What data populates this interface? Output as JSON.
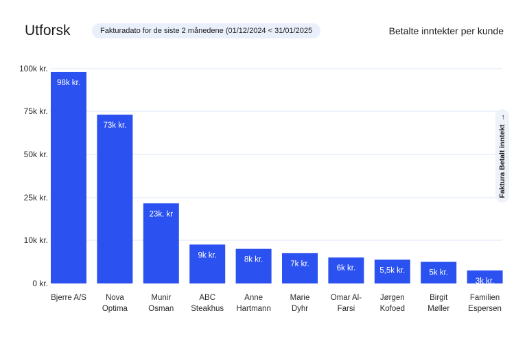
{
  "header": {
    "title": "Utforsk",
    "filter_label": "Fakturadato for de siste 2 månedene (01/12/2024 < 31/01/2025",
    "metric_title": "Betalte inntekter per kunde"
  },
  "sort_control": {
    "label": "Faktura Betalt inntekt",
    "icon": "arrow-down-icon"
  },
  "colors": {
    "bar": "#2b52f0",
    "grid": "#dbe4f7",
    "bar_label": "#ffffff"
  },
  "chart_data": {
    "type": "bar",
    "title": "Betalte inntekter per kunde",
    "categories": [
      [
        "Bjerre A/S"
      ],
      [
        "Nova",
        "Optima"
      ],
      [
        "Munir",
        "Osman"
      ],
      [
        "ABC",
        "Steakhus"
      ],
      [
        "Anne",
        "Hartmann"
      ],
      [
        "Marie",
        "Dyhr"
      ],
      [
        "Omar Al-",
        "Farsi"
      ],
      [
        "Jørgen",
        "Kofoed"
      ],
      [
        "Birgit",
        "Møller"
      ],
      [
        "Familien",
        "Espersen"
      ]
    ],
    "values": [
      98000,
      73000,
      23000,
      9000,
      8000,
      7000,
      6000,
      5500,
      5000,
      3000
    ],
    "data_labels": [
      "98k kr.",
      "73k kr.",
      "23k. kr",
      "9k kr.",
      "8k kr.",
      "7k kr.",
      "6k kr.",
      "5,5k kr.",
      "5k kr.",
      "3k kr."
    ],
    "y_ticks": [
      {
        "label": "0 kr.",
        "value": 0
      },
      {
        "label": "10k kr.",
        "value": 10000
      },
      {
        "label": "25k kr.",
        "value": 25000
      },
      {
        "label": "50k kr.",
        "value": 50000
      },
      {
        "label": "75k kr.",
        "value": 75000
      },
      {
        "label": "100k kr.",
        "value": 100000
      }
    ],
    "ylim": [
      0,
      100000
    ],
    "grid": true
  }
}
